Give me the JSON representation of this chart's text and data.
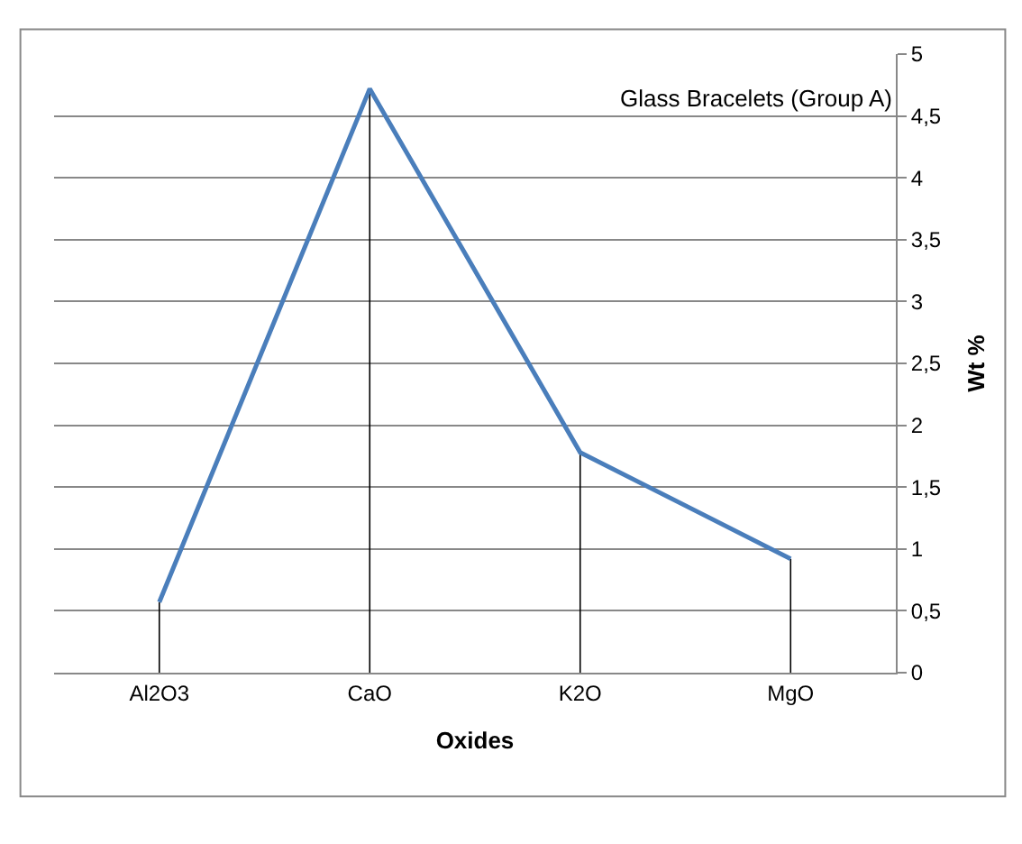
{
  "chart_data": {
    "type": "line",
    "title": "Glass Bracelets (Group A)",
    "xlabel": "Oxides",
    "ylabel": "Wt %",
    "categories": [
      "Al2O3",
      "CaO",
      "K2O",
      "MgO"
    ],
    "series": [
      {
        "color": "#4a7ebb",
        "values": [
          0.57,
          4.72,
          1.78,
          0.92
        ],
        "errors": [
          [
            0,
            0.57
          ],
          [
            0,
            4.72
          ],
          [
            0,
            1.78
          ],
          [
            0,
            0.92
          ]
        ]
      }
    ],
    "ylim": [
      0,
      5
    ],
    "yticks": [
      0,
      {
        "value": 0.5,
        "label": "0,5"
      },
      1,
      {
        "value": 1.5,
        "label": "1,5"
      },
      2,
      {
        "value": 2.5,
        "label": "2,5"
      },
      3,
      {
        "value": 3.5,
        "label": "3,5"
      },
      4,
      {
        "value": 4.5,
        "label": "4,5"
      },
      5
    ],
    "grid": "y",
    "marker": "none",
    "line_style": "solid"
  }
}
